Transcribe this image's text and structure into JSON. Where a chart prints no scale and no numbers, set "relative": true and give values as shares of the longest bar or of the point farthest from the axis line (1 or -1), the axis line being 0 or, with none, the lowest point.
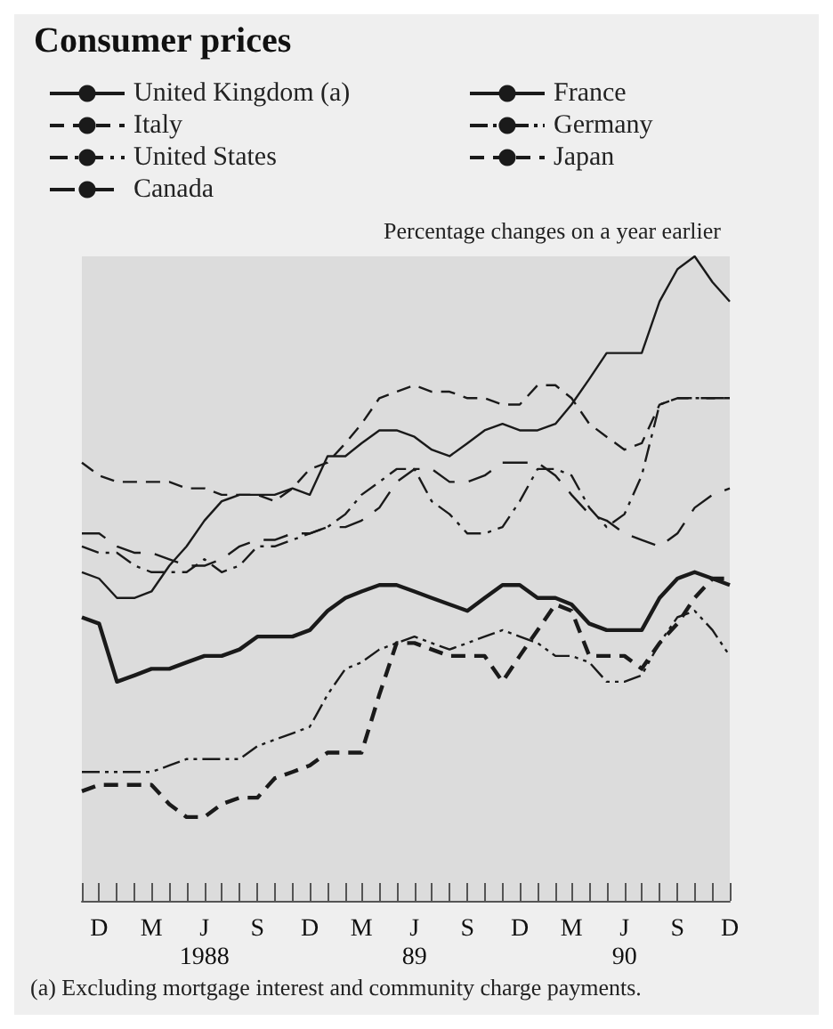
{
  "chart_data": {
    "type": "line",
    "title": "Consumer prices",
    "subtitle": "Percentage changes on a year earlier",
    "relative": true,
    "legend": "top",
    "grid": false,
    "x": [
      "1987-11",
      "1987-12",
      "1988-01",
      "1988-02",
      "1988-03",
      "1988-04",
      "1988-05",
      "1988-06",
      "1988-07",
      "1988-08",
      "1988-09",
      "1988-10",
      "1988-11",
      "1988-12",
      "1989-01",
      "1989-02",
      "1989-03",
      "1989-04",
      "1989-05",
      "1989-06",
      "1989-07",
      "1989-08",
      "1989-09",
      "1989-10",
      "1989-11",
      "1989-12",
      "1990-01",
      "1990-02",
      "1990-03",
      "1990-04",
      "1990-05",
      "1990-06",
      "1990-07",
      "1990-08",
      "1990-09",
      "1990-10",
      "1990-11",
      "1990-12"
    ],
    "xlim": [
      "1987-11",
      "1990-12"
    ],
    "xticks": [
      {
        "value": "1987-11",
        "label": null
      },
      {
        "value": "1987-12",
        "label": "D"
      },
      {
        "value": "1988-01",
        "label": null
      },
      {
        "value": "1988-02",
        "label": null
      },
      {
        "value": "1988-03",
        "label": "M"
      },
      {
        "value": "1988-04",
        "label": null
      },
      {
        "value": "1988-05",
        "label": null
      },
      {
        "value": "1988-06",
        "label": "J\n1988"
      },
      {
        "value": "1988-07",
        "label": null
      },
      {
        "value": "1988-08",
        "label": null
      },
      {
        "value": "1988-09",
        "label": "S"
      },
      {
        "value": "1988-10",
        "label": null
      },
      {
        "value": "1988-11",
        "label": null
      },
      {
        "value": "1988-12",
        "label": "D"
      },
      {
        "value": "1989-01",
        "label": null
      },
      {
        "value": "1989-02",
        "label": null
      },
      {
        "value": "1989-03",
        "label": "M"
      },
      {
        "value": "1989-04",
        "label": null
      },
      {
        "value": "1989-05",
        "label": null
      },
      {
        "value": "1989-06",
        "label": "J\n89"
      },
      {
        "value": "1989-07",
        "label": null
      },
      {
        "value": "1989-08",
        "label": null
      },
      {
        "value": "1989-09",
        "label": "S"
      },
      {
        "value": "1989-10",
        "label": null
      },
      {
        "value": "1989-11",
        "label": null
      },
      {
        "value": "1989-12",
        "label": "D"
      },
      {
        "value": "1990-01",
        "label": null
      },
      {
        "value": "1990-02",
        "label": null
      },
      {
        "value": "1990-03",
        "label": "M"
      },
      {
        "value": "1990-04",
        "label": null
      },
      {
        "value": "1990-05",
        "label": null
      },
      {
        "value": "1990-06",
        "label": "J\n90"
      },
      {
        "value": "1990-07",
        "label": null
      },
      {
        "value": "1990-08",
        "label": null
      },
      {
        "value": "1990-09",
        "label": "S"
      },
      {
        "value": "1990-10",
        "label": null
      },
      {
        "value": "1990-11",
        "label": null
      },
      {
        "value": "1990-12",
        "label": "D"
      }
    ],
    "series": [
      {
        "name": "United Kingdom (a)",
        "color": "#1a1a1a",
        "line_style": "solid",
        "values": [
          0.51,
          0.5,
          0.47,
          0.47,
          0.48,
          0.52,
          0.55,
          0.59,
          0.62,
          0.63,
          0.63,
          0.63,
          0.64,
          0.63,
          0.69,
          0.69,
          0.71,
          0.73,
          0.73,
          0.72,
          0.7,
          0.69,
          0.71,
          0.73,
          0.74,
          0.73,
          0.73,
          0.74,
          0.77,
          0.81,
          0.85,
          0.85,
          0.85,
          0.93,
          0.98,
          1.0,
          0.96,
          0.93
        ]
      },
      {
        "name": "Italy",
        "color": "#1a1a1a",
        "line_style": "dashed",
        "values": [
          0.68,
          0.66,
          0.65,
          0.65,
          0.65,
          0.65,
          0.64,
          0.64,
          0.63,
          0.63,
          0.63,
          0.62,
          0.64,
          0.67,
          0.68,
          0.71,
          0.74,
          0.78,
          0.79,
          0.8,
          0.79,
          0.79,
          0.78,
          0.78,
          0.77,
          0.77,
          0.8,
          0.8,
          0.78,
          0.74,
          0.72,
          0.7,
          0.71,
          0.77,
          0.78,
          0.78,
          0.78,
          0.78
        ]
      },
      {
        "name": "United States",
        "color": "#1a1a1a",
        "line_style": "dashdot",
        "values": [
          0.55,
          0.54,
          0.54,
          0.52,
          0.51,
          0.51,
          0.51,
          0.53,
          0.51,
          0.52,
          0.55,
          0.55,
          0.56,
          0.57,
          0.58,
          0.6,
          0.63,
          0.65,
          0.67,
          0.67,
          0.62,
          0.6,
          0.57,
          0.57,
          0.58,
          0.62,
          0.67,
          0.67,
          0.66,
          0.61,
          0.58,
          0.6,
          0.66,
          0.77,
          0.78,
          0.78,
          0.78,
          0.78
        ]
      },
      {
        "name": "Canada",
        "color": "#1a1a1a",
        "line_style": "longdash",
        "values": [
          0.57,
          0.57,
          0.55,
          0.54,
          0.54,
          0.53,
          0.52,
          0.52,
          0.53,
          0.55,
          0.56,
          0.56,
          0.57,
          0.57,
          0.58,
          0.58,
          0.59,
          0.61,
          0.65,
          0.67,
          0.67,
          0.65,
          0.65,
          0.66,
          0.68,
          0.68,
          0.68,
          0.66,
          0.63,
          0.6,
          0.59,
          0.57,
          0.56,
          0.55,
          0.57,
          0.61,
          0.63,
          0.64
        ]
      },
      {
        "name": "France",
        "color": "#1a1a1a",
        "line_style": "solid",
        "values": [
          0.44,
          0.43,
          0.34,
          0.35,
          0.36,
          0.36,
          0.37,
          0.38,
          0.38,
          0.39,
          0.41,
          0.41,
          0.41,
          0.42,
          0.45,
          0.47,
          0.48,
          0.49,
          0.49,
          0.48,
          0.47,
          0.46,
          0.45,
          0.47,
          0.49,
          0.49,
          0.47,
          0.47,
          0.46,
          0.43,
          0.42,
          0.42,
          0.42,
          0.47,
          0.5,
          0.51,
          0.5,
          0.49
        ]
      },
      {
        "name": "Germany",
        "color": "#1a1a1a",
        "line_style": "dashdotdot",
        "values": [
          0.2,
          0.2,
          0.2,
          0.2,
          0.2,
          0.21,
          0.22,
          0.22,
          0.22,
          0.22,
          0.24,
          0.25,
          0.26,
          0.27,
          0.32,
          0.36,
          0.37,
          0.39,
          0.4,
          0.41,
          0.4,
          0.39,
          0.4,
          0.41,
          0.42,
          0.41,
          0.4,
          0.38,
          0.38,
          0.37,
          0.34,
          0.34,
          0.35,
          0.4,
          0.44,
          0.45,
          0.42,
          0.38
        ]
      },
      {
        "name": "Japan",
        "color": "#1a1a1a",
        "line_style": "dashed",
        "values": [
          0.17,
          0.18,
          0.18,
          0.18,
          0.18,
          0.15,
          0.13,
          0.13,
          0.15,
          0.16,
          0.16,
          0.19,
          0.2,
          0.21,
          0.23,
          0.23,
          0.23,
          0.32,
          0.4,
          0.4,
          0.39,
          0.38,
          0.38,
          0.38,
          0.34,
          0.38,
          0.42,
          0.46,
          0.45,
          0.38,
          0.38,
          0.38,
          0.36,
          0.4,
          0.43,
          0.47,
          0.5,
          0.5
        ]
      }
    ],
    "annotations": [
      "(a) Excluding mortgage interest and community charge payments."
    ]
  }
}
